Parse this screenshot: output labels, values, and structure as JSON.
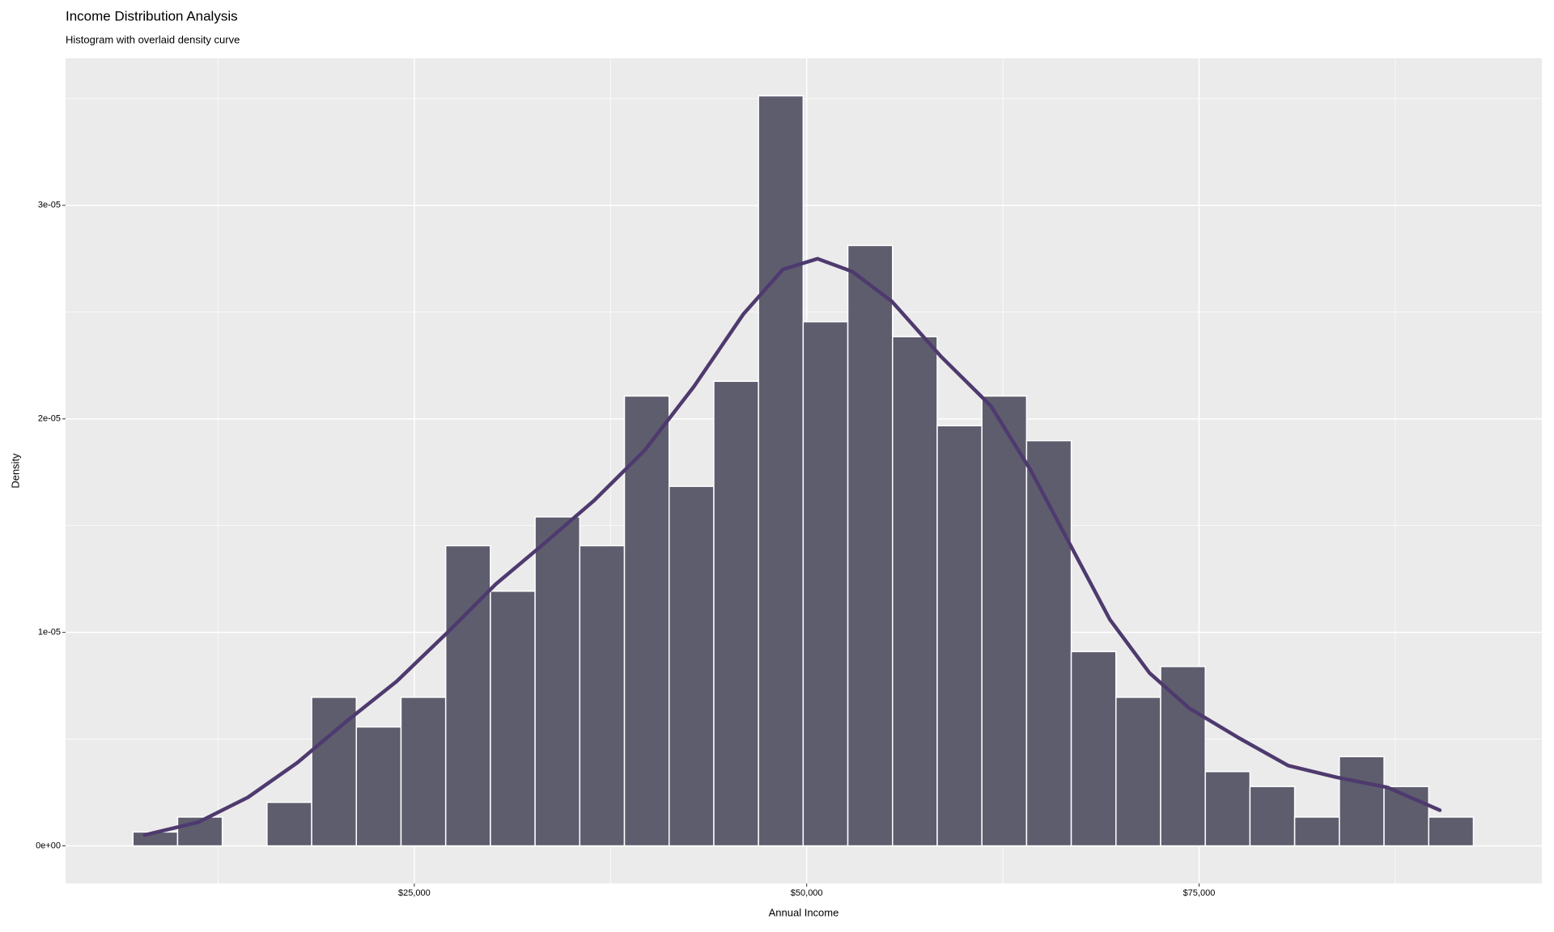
{
  "chart_data": {
    "type": "histogram",
    "title": "Income Distribution Analysis",
    "subtitle": "Histogram with overlaid density curve",
    "x_label": "Annual Income",
    "y_label": "Density",
    "bins": [
      7071,
      9918,
      12765,
      15612,
      18459,
      21306,
      24153,
      27000,
      29847,
      32694,
      35541,
      38388,
      41235,
      44082,
      46929,
      49776,
      52623,
      55470,
      58317,
      61164,
      64011,
      66858,
      69705,
      72552,
      75399,
      78246,
      81093,
      83940,
      86787,
      89634,
      92481
    ],
    "values": [
      6.5e-07,
      1.35e-06,
      0,
      2.04e-06,
      6.96e-06,
      5.57e-06,
      6.96e-06,
      1.406e-05,
      1.193e-05,
      1.541e-05,
      1.406e-05,
      2.107e-05,
      1.684e-05,
      2.176e-05,
      3.513e-05,
      2.455e-05,
      2.812e-05,
      2.385e-05,
      1.968e-05,
      2.107e-05,
      1.898e-05,
      9.1e-06,
      6.96e-06,
      8.4e-06,
      3.48e-06,
      2.78e-06,
      1.35e-06,
      4.18e-06,
      2.78e-06,
      1.35e-06
    ],
    "color": "#595869",
    "density": {
      "color": "#4e3a6e",
      "x": [
        7828,
        11237,
        14394,
        17551,
        20707,
        23864,
        27020,
        30177,
        33333,
        36490,
        39646,
        42803,
        45960,
        48485,
        50694,
        52904,
        55429,
        58586,
        61742,
        64268,
        66793,
        69318,
        71843,
        74369,
        77525,
        80682,
        83838,
        86995,
        90341
      ],
      "y": [
        5.1e-07,
        1.11e-06,
        2.27e-06,
        3.9e-06,
        5.85e-06,
        7.7e-06,
        9.93e-06,
        1.225e-05,
        1.42e-05,
        1.62e-05,
        1.85e-05,
        2.15e-05,
        2.49e-05,
        2.7e-05,
        2.75e-05,
        2.69e-05,
        2.55e-05,
        2.29e-05,
        2.06e-05,
        1.76e-05,
        1.41e-05,
        1.06e-05,
        8.1e-06,
        6.45e-06,
        5.06e-06,
        3.76e-06,
        3.2e-06,
        2.74e-06,
        1.67e-06
      ]
    },
    "xlim": [
      2778,
      96843
    ],
    "ylim": [
      -1.76e-06,
      3.689e-05
    ],
    "xticks": [
      {
        "value": 25000,
        "label": "$25,000"
      },
      {
        "value": 50000,
        "label": "$50,000"
      },
      {
        "value": 75000,
        "label": "$75,000"
      }
    ],
    "yticks": [
      {
        "value": 0,
        "label": "0e+00"
      },
      {
        "value": 1e-05,
        "label": "1e-05"
      },
      {
        "value": 2e-05,
        "label": "2e-05"
      },
      {
        "value": 3e-05,
        "label": "3e-05"
      }
    ],
    "x_minor_ticks": [
      12500,
      37500,
      62500,
      87500
    ],
    "y_minor_ticks": [
      5e-06,
      1.5e-05,
      2.5e-05,
      3.5e-05
    ],
    "grid": true
  }
}
